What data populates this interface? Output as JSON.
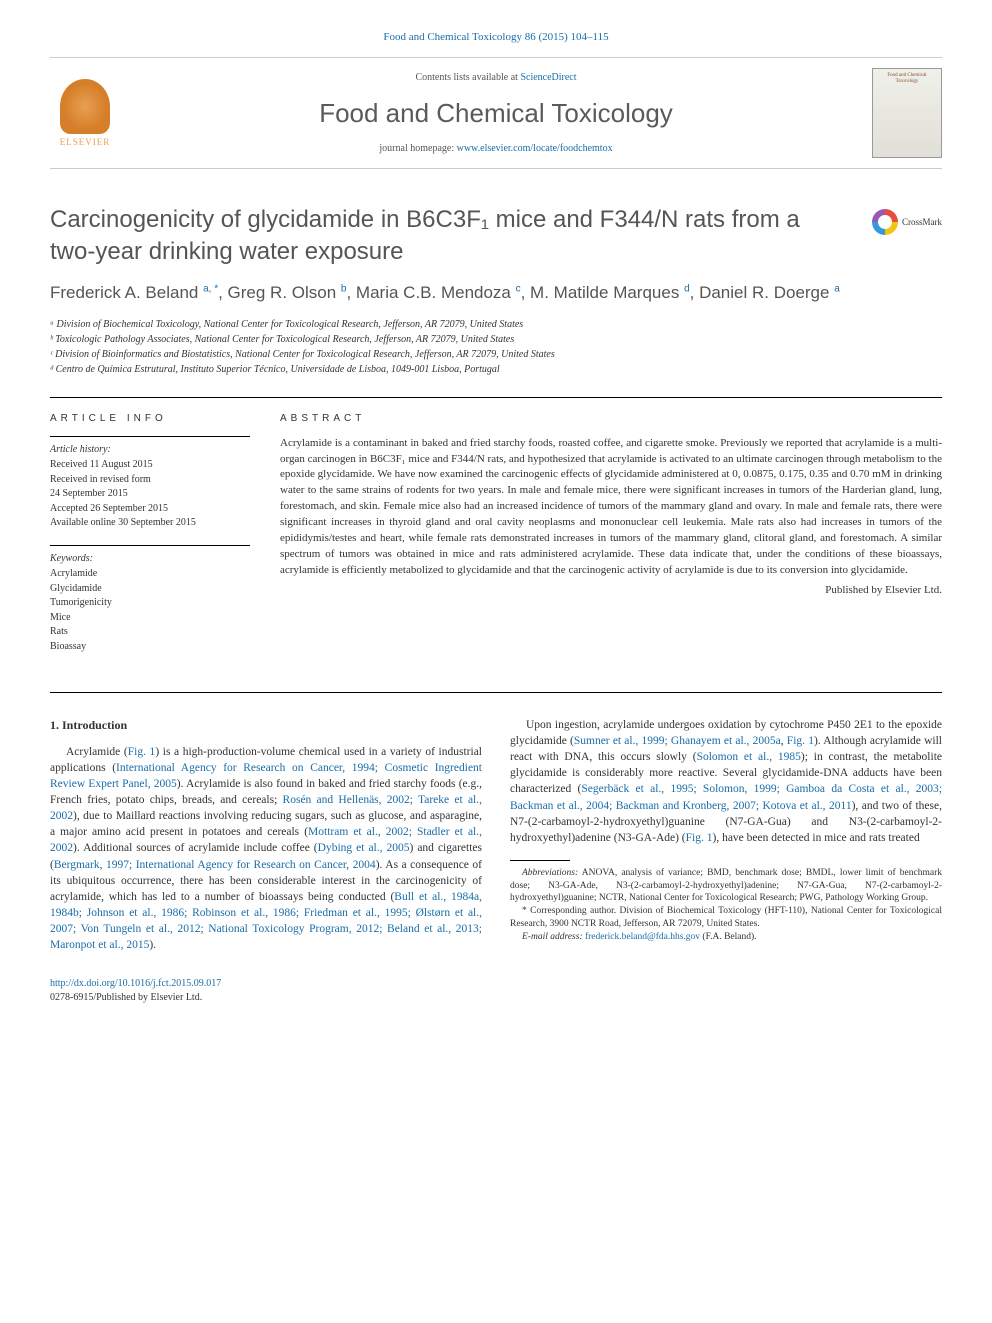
{
  "header": {
    "citation": "Food and Chemical Toxicology 86 (2015) 104–115",
    "contents_prefix": "Contents lists available at ",
    "contents_link": "ScienceDirect",
    "journal_name": "Food and Chemical Toxicology",
    "homepage_prefix": "journal homepage: ",
    "homepage_url": "www.elsevier.com/locate/foodchemtox",
    "publisher_label": "ELSEVIER",
    "cover_text": "Food and Chemical Toxicology"
  },
  "crossmark_label": "CrossMark",
  "title": "Carcinogenicity of glycidamide in B6C3F₁ mice and F344/N rats from a two-year drinking water exposure",
  "authors_html": "Frederick A. Beland <sup>a, *</sup>, Greg R. Olson <sup>b</sup>, Maria C.B. Mendoza <sup>c</sup>, M. Matilde Marques <sup>d</sup>, Daniel R. Doerge <sup>a</sup>",
  "affiliations": [
    "ᵃ Division of Biochemical Toxicology, National Center for Toxicological Research, Jefferson, AR 72079, United States",
    "ᵇ Toxicologic Pathology Associates, National Center for Toxicological Research, Jefferson, AR 72079, United States",
    "ᶜ Division of Bioinformatics and Biostatistics, National Center for Toxicological Research, Jefferson, AR 72079, United States",
    "ᵈ Centro de Química Estrutural, Instituto Superior Técnico, Universidade de Lisboa, 1049-001 Lisboa, Portugal"
  ],
  "article_info": {
    "label": "ARTICLE INFO",
    "history_heading": "Article history:",
    "history": [
      "Received 11 August 2015",
      "Received in revised form",
      "24 September 2015",
      "Accepted 26 September 2015",
      "Available online 30 September 2015"
    ],
    "keywords_heading": "Keywords:",
    "keywords": [
      "Acrylamide",
      "Glycidamide",
      "Tumorigenicity",
      "Mice",
      "Rats",
      "Bioassay"
    ]
  },
  "abstract": {
    "label": "ABSTRACT",
    "text": "Acrylamide is a contaminant in baked and fried starchy foods, roasted coffee, and cigarette smoke. Previously we reported that acrylamide is a multi-organ carcinogen in B6C3F₁ mice and F344/N rats, and hypothesized that acrylamide is activated to an ultimate carcinogen through metabolism to the epoxide glycidamide. We have now examined the carcinogenic effects of glycidamide administered at 0, 0.0875, 0.175, 0.35 and 0.70 mM in drinking water to the same strains of rodents for two years. In male and female mice, there were significant increases in tumors of the Harderian gland, lung, forestomach, and skin. Female mice also had an increased incidence of tumors of the mammary gland and ovary. In male and female rats, there were significant increases in thyroid gland and oral cavity neoplasms and mononuclear cell leukemia. Male rats also had increases in tumors of the epididymis/testes and heart, while female rats demonstrated increases in tumors of the mammary gland, clitoral gland, and forestomach. A similar spectrum of tumors was obtained in mice and rats administered acrylamide. These data indicate that, under the conditions of these bioassays, acrylamide is efficiently metabolized to glycidamide and that the carcinogenic activity of acrylamide is due to its conversion into glycidamide.",
    "publisher": "Published by Elsevier Ltd."
  },
  "intro": {
    "heading": "1. Introduction",
    "p1_a": "Acrylamide (",
    "p1_fig": "Fig. 1",
    "p1_b": ") is a high-production-volume chemical used in a variety of industrial applications (",
    "p1_ref1": "International Agency for Research on Cancer, 1994; Cosmetic Ingredient Review Expert Panel, 2005",
    "p1_c": "). Acrylamide is also found in baked and fried starchy foods (e.g., French fries, potato chips, breads, and cereals; ",
    "p1_ref2": "Rosén and Hellenäs, 2002; Tareke et al., 2002",
    "p1_d": "), due to Maillard reactions involving reducing sugars, such as glucose, and asparagine, a major amino acid present in potatoes and cereals (",
    "p1_ref3": "Mottram et al., 2002; Stadler et al., 2002",
    "p1_e": "). Additional sources of acrylamide include ",
    "p1_f": "coffee (",
    "p1_ref4": "Dybing et al., 2005",
    "p1_g": ") and cigarettes (",
    "p1_ref5": "Bergmark, 1997; International Agency for Research on Cancer, 2004",
    "p1_h": "). As a consequence of its ubiquitous occurrence, there has been considerable interest in the carcinogenicity of acrylamide, which has led to a number of bioassays being conducted (",
    "p1_ref6": "Bull et al., 1984a, 1984b; Johnson et al., 1986; Robinson et al., 1986; Friedman et al., 1995; Ølstørn et al., 2007; Von Tungeln et al., 2012; National Toxicology Program, 2012; Beland et al., 2013; Maronpot et al., 2015",
    "p1_i": ").",
    "p2_a": "Upon ingestion, acrylamide undergoes oxidation by cytochrome P450 2E1 to the epoxide glycidamide (",
    "p2_ref1": "Sumner et al., 1999; Ghanayem et al., 2005a",
    "p2_b": ", ",
    "p2_fig": "Fig. 1",
    "p2_c": "). Although acrylamide will react with DNA, this occurs slowly (",
    "p2_ref2": "Solomon et al., 1985",
    "p2_d": "); in contrast, the metabolite glycidamide is considerably more reactive. Several glycidamide-DNA adducts have been characterized (",
    "p2_ref3": "Segerbäck et al., 1995; Solomon, 1999; Gamboa da Costa et al., 2003; Backman et al., 2004; Backman and Kronberg, 2007; Kotova et al., 2011",
    "p2_e": "), and two of these, N7-(2-carbamoyl-2-hydroxyethyl)guanine (N7-GA-Gua) and N3-(2-carbamoyl-2-hydroxyethyl)adenine (N3-GA-Ade) (",
    "p2_fig2": "Fig. 1",
    "p2_f": "), have been detected in mice and rats treated"
  },
  "footnotes": {
    "abbrev_label": "Abbreviations:",
    "abbrev_text": " ANOVA, analysis of variance; BMD, benchmark dose; BMDL, lower limit of benchmark dose; N3-GA-Ade, N3-(2-carbamoyl-2-hydroxyethyl)adenine; N7-GA-Gua, N7-(2-carbamoyl-2-hydroxyethyl)guanine; NCTR, National Center for Toxicological Research; PWG, Pathology Working Group.",
    "corresponding": "* Corresponding author. Division of Biochemical Toxicology (HFT-110), National Center for Toxicological Research, 3900 NCTR Road, Jefferson, AR 72079, United States.",
    "email_label": "E-mail address: ",
    "email": "frederick.beland@fda.hhs.gov",
    "email_suffix": " (F.A. Beland)."
  },
  "footer": {
    "doi": "http://dx.doi.org/10.1016/j.fct.2015.09.017",
    "issn_line": "0278-6915/Published by Elsevier Ltd."
  },
  "colors": {
    "link": "#1a6da8",
    "text": "#333333",
    "title_gray": "#555555",
    "elsevier_orange": "#e8a052"
  }
}
